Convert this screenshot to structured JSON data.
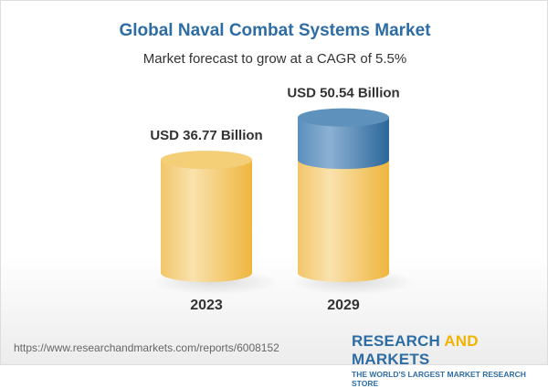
{
  "title": "Global Naval Combat Systems Market",
  "subtitle": "Market forecast to grow at a CAGR of 5.5%",
  "chart_data": {
    "type": "bar",
    "style": "3d-cylinder",
    "categories": [
      "2023",
      "2029"
    ],
    "values": [
      36.77,
      50.54
    ],
    "value_labels": [
      "USD 36.77 Billion",
      "USD 50.54 Billion"
    ],
    "unit": "USD Billion",
    "cagr": "5.5%",
    "colors": {
      "base": "#f2c25a",
      "growth": "#4f86b6"
    }
  },
  "footer": {
    "url": "https://www.researchandmarkets.com/reports/6008152",
    "logo_part1": "RESEARCH ",
    "logo_part2": "AND",
    "logo_part3": " MARKETS",
    "tagline": "THE WORLD'S LARGEST MARKET RESEARCH STORE"
  }
}
